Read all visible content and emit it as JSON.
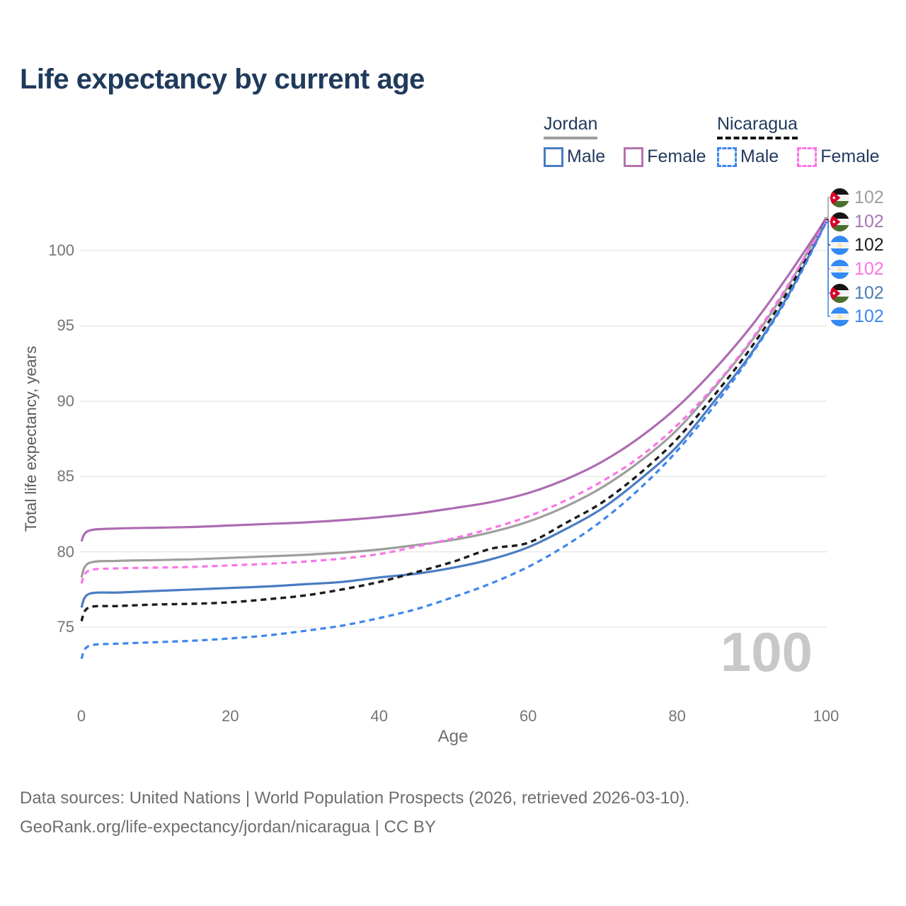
{
  "title": "Life expectancy by current age",
  "legend": {
    "groups": [
      {
        "country": "Jordan",
        "line_style": "solid",
        "underline_color": "#9e9e9e",
        "items": [
          {
            "label": "Male",
            "color": "#4a7cc2"
          },
          {
            "label": "Female",
            "color": "#b473ae"
          }
        ]
      },
      {
        "country": "Nicaragua",
        "line_style": "dashed",
        "underline_color": "#141414",
        "items": [
          {
            "label": "Male",
            "color": "#3d86ee"
          },
          {
            "label": "Female",
            "color": "#fb74e6"
          }
        ]
      }
    ]
  },
  "chart_data": {
    "type": "line",
    "title": "Life expectancy by current age",
    "xlabel": "Age",
    "ylabel": "Total life expectancy, years",
    "xlim": [
      0,
      100
    ],
    "ylim": [
      72.5,
      103
    ],
    "xticks": [
      0,
      20,
      40,
      60,
      80,
      100
    ],
    "yticks": [
      75,
      80,
      85,
      90,
      95,
      100
    ],
    "grid": "horizontal-only",
    "x": [
      0,
      1,
      5,
      10,
      15,
      20,
      25,
      30,
      35,
      40,
      45,
      50,
      55,
      60,
      65,
      70,
      75,
      80,
      85,
      90,
      95,
      100
    ],
    "series": [
      {
        "key": "jordan_both",
        "name": "Jordan — Both sexes",
        "country": "Jordan",
        "sex": "both",
        "color": "#9e9e9e",
        "dash": false,
        "values": [
          78.3,
          79.25,
          79.4,
          79.45,
          79.5,
          79.6,
          79.7,
          79.8,
          79.95,
          80.15,
          80.45,
          80.8,
          81.3,
          82.0,
          83.0,
          84.3,
          86.0,
          88.1,
          90.9,
          94.0,
          97.7,
          102.2
        ]
      },
      {
        "key": "jordan_male",
        "name": "Jordan — Male",
        "country": "Jordan",
        "sex": "male",
        "color": "#4a7cc2",
        "dash": false,
        "values": [
          76.3,
          77.2,
          77.3,
          77.4,
          77.5,
          77.6,
          77.7,
          77.85,
          78.0,
          78.3,
          78.55,
          78.95,
          79.5,
          80.3,
          81.5,
          82.9,
          84.8,
          87.0,
          90.0,
          93.2,
          97.1,
          101.9
        ]
      },
      {
        "key": "jordan_female",
        "name": "Jordan — Female",
        "country": "Jordan",
        "sex": "female",
        "color": "#ad6cb2",
        "dash": false,
        "values": [
          80.7,
          81.4,
          81.55,
          81.6,
          81.65,
          81.75,
          81.85,
          81.95,
          82.1,
          82.3,
          82.55,
          82.9,
          83.3,
          83.9,
          84.8,
          86.0,
          87.6,
          89.6,
          92.1,
          95.0,
          98.4,
          102.1
        ]
      },
      {
        "key": "nicaragua_both",
        "name": "Nicaragua — Both sexes",
        "country": "Nicaragua",
        "sex": "both",
        "color": "#1c1c1c",
        "dash": true,
        "values": [
          75.4,
          76.3,
          76.4,
          76.5,
          76.55,
          76.65,
          76.85,
          77.1,
          77.5,
          78.0,
          78.65,
          79.35,
          80.2,
          80.6,
          81.9,
          83.3,
          85.2,
          87.5,
          90.4,
          93.6,
          97.4,
          102.05
        ]
      },
      {
        "key": "nicaragua_female",
        "name": "Nicaragua — Female",
        "country": "Nicaragua",
        "sex": "female",
        "color": "#fb74e6",
        "dash": true,
        "values": [
          77.9,
          78.75,
          78.9,
          78.95,
          79.0,
          79.1,
          79.2,
          79.35,
          79.55,
          79.85,
          80.35,
          80.9,
          81.55,
          82.35,
          83.4,
          84.7,
          86.3,
          88.4,
          91.0,
          94.1,
          97.8,
          101.95
        ]
      },
      {
        "key": "nicaragua_male",
        "name": "Nicaragua — Male",
        "country": "Nicaragua",
        "sex": "male",
        "color": "#3d86ee",
        "dash": true,
        "values": [
          72.9,
          73.75,
          73.9,
          74.0,
          74.1,
          74.25,
          74.45,
          74.75,
          75.1,
          75.6,
          76.2,
          77.0,
          77.9,
          79.0,
          80.4,
          82.1,
          84.2,
          86.7,
          89.7,
          93.1,
          97.0,
          101.85
        ]
      }
    ],
    "end_labels": [
      {
        "series": "jordan_both",
        "flag": "jordan",
        "value": "102",
        "color": "#9e9e9e"
      },
      {
        "series": "jordan_female",
        "flag": "jordan",
        "value": "102",
        "color": "#a873b8"
      },
      {
        "series": "nicaragua_both",
        "flag": "nicaragua",
        "value": "102",
        "color": "#1f1f1f"
      },
      {
        "series": "nicaragua_female",
        "flag": "nicaragua",
        "value": "102",
        "color": "#fb74e6"
      },
      {
        "series": "jordan_male",
        "flag": "jordan",
        "value": "102",
        "color": "#4a7db5"
      },
      {
        "series": "nicaragua_male",
        "flag": "nicaragua",
        "value": "102",
        "color": "#3d86ee"
      }
    ],
    "hover_age_watermark": "100",
    "flag_colors": {
      "jordan": {
        "black": "#151515",
        "white": "#f4f4f4",
        "green": "#496e2d",
        "red": "#d80027"
      },
      "nicaragua": {
        "blue": "#338af3",
        "white": "#f4f4f4",
        "gold": "#ffda44"
      }
    }
  },
  "footer": {
    "line1": "Data sources: United Nations | World Population Prospects (2026, retrieved 2026-03-10).",
    "line2": "GeoRank.org/life-expectancy/jordan/nicaragua | CC BY"
  }
}
